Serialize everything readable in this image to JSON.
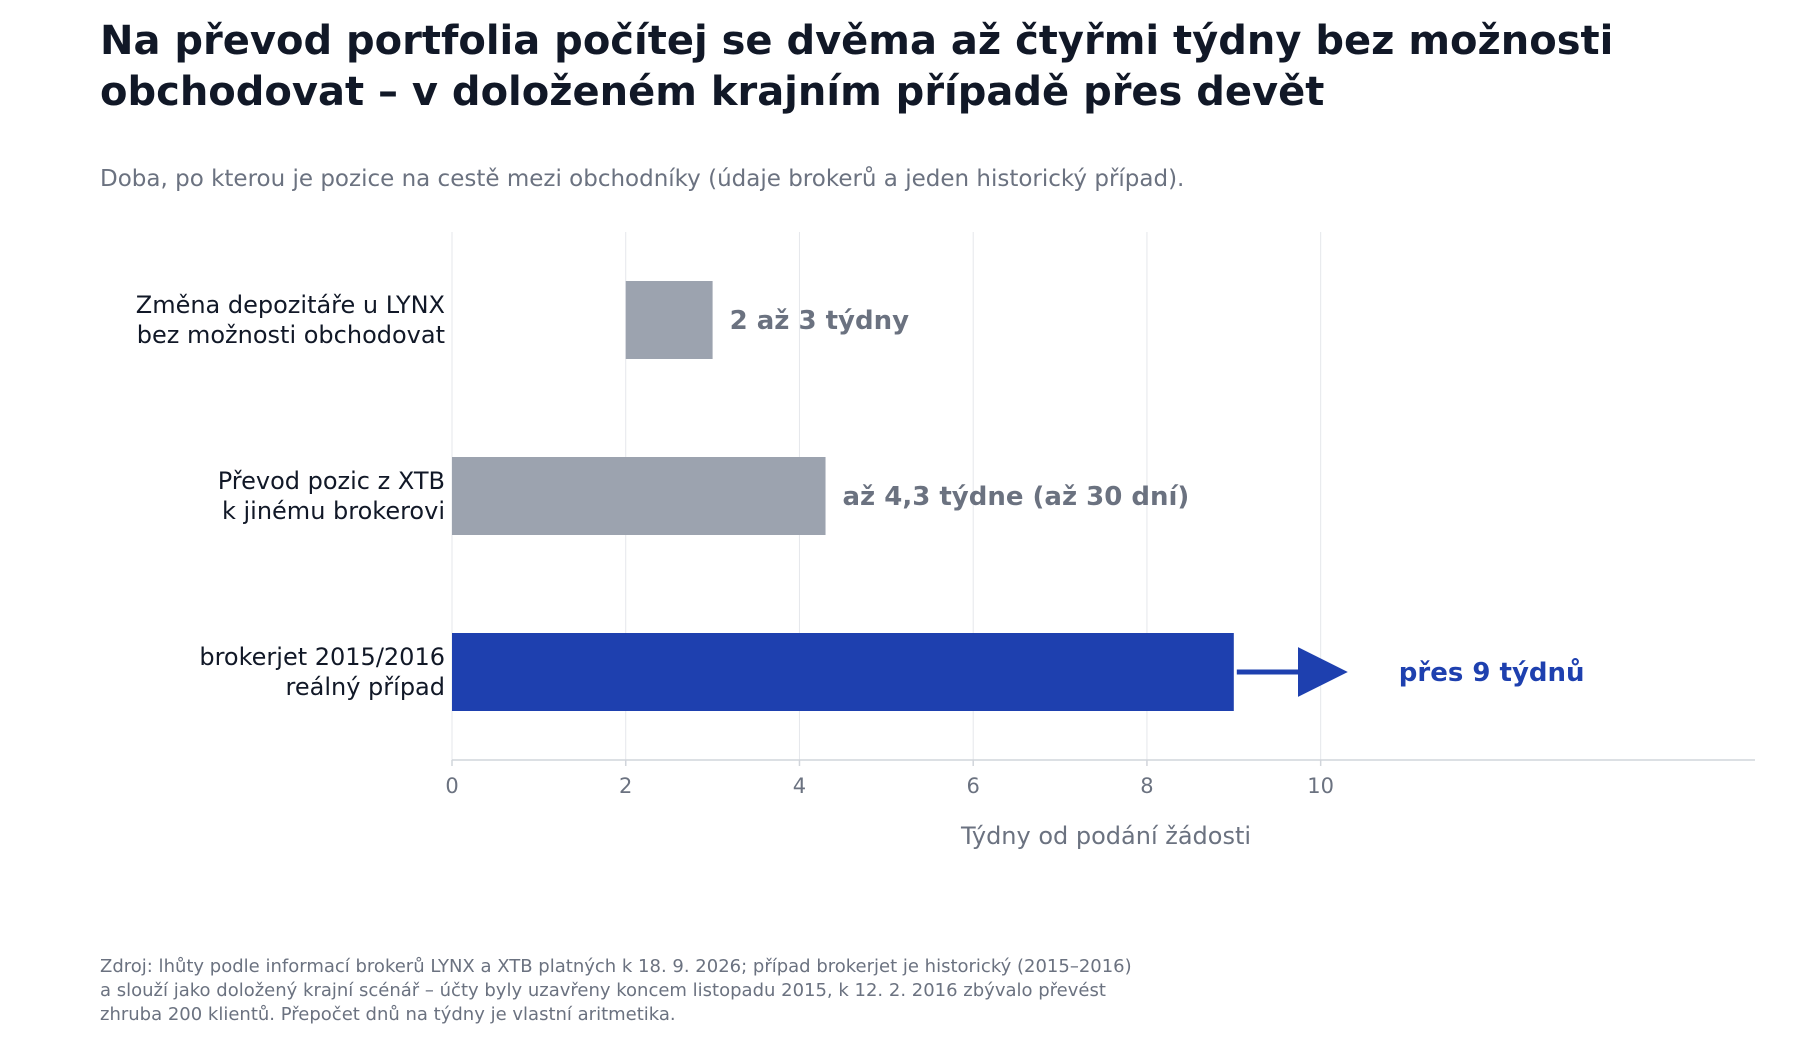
{
  "page": {
    "title_lines": [
      "Na převod portfolia počítej se dvěma až čtyřmi týdny bez možnosti",
      "obchodovat – v doloženém krajním případě přes devět"
    ],
    "subtitle": "Doba, po kterou je pozice na cestě mezi obchodníky (údaje brokerů a jeden historický případ).",
    "source_lines": [
      "Zdroj: lhůty podle informací brokerů LYNX a XTB platných k 18. 9. 2026; případ brokerjet je historický (2015–2016)",
      "a slouží jako doložený krajní scénář – účty byly uzavřeny koncem listopadu 2015, k 12. 2. 2016 zbývalo převést",
      "zhruba 200 klientů. Přepočet dnů na týdny je vlastní aritmetika."
    ]
  },
  "colors": {
    "title": "#111827",
    "muted": "#6b7280",
    "bar_gray": "#9ca3af",
    "bar_highlight": "#1e40af",
    "grid": "#e5e7eb",
    "axis": "#d1d5db"
  },
  "chart_data": {
    "type": "bar",
    "orientation": "horizontal",
    "xlabel": "Týdny od podání žádosti",
    "xlim": [
      0,
      15
    ],
    "xticks": [
      0,
      2,
      4,
      6,
      8,
      10
    ],
    "grid": "vertical",
    "series": [
      {
        "label_lines": [
          "Změna depozitáře u LYNX",
          "bez možnosti obchodovat"
        ],
        "start": 2,
        "end": 3,
        "value_label": "2 až 3 týdny",
        "highlight": false
      },
      {
        "label_lines": [
          "Převod pozic z XTB",
          "k jinému brokerovi"
        ],
        "start": 0,
        "end": 4.3,
        "value_label": "až 4,3 týdne (až 30 dní)",
        "highlight": false
      },
      {
        "label_lines": [
          "brokerjet 2015/2016",
          "reálný případ"
        ],
        "start": 0,
        "end": 9,
        "value_label": "přes 9 týdnů",
        "highlight": true,
        "arrow": true
      }
    ]
  }
}
